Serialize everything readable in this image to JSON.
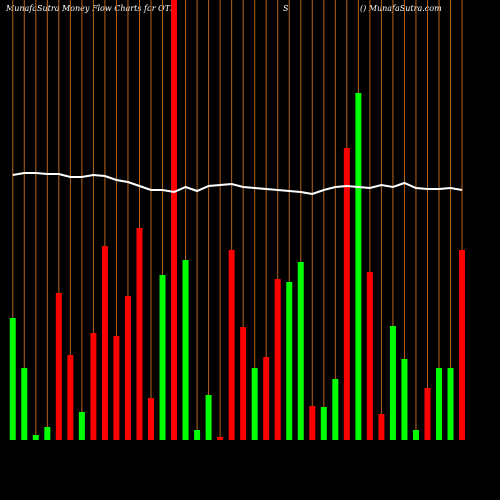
{
  "chart_data": {
    "type": "bar",
    "title": "MunafaSutra  Money Flow  Charts for OTI",
    "subtitle": "S",
    "source": "() MunafaSutra.com",
    "ylim": [
      0,
      440
    ],
    "grid_color": "#b8651b",
    "up_color": "#00ff00",
    "down_color": "#ff0000",
    "line_color": "#ffffff",
    "values": [
      122,
      72,
      5,
      13,
      147,
      85,
      28,
      107,
      194,
      104,
      144,
      212,
      42,
      165,
      440,
      180,
      10,
      45,
      3,
      190,
      113,
      72,
      83,
      161,
      158,
      178,
      34,
      33,
      61,
      292,
      347,
      168,
      26,
      114,
      81,
      10,
      52,
      72,
      72,
      190
    ],
    "directions": [
      "up",
      "up",
      "up",
      "up",
      "down",
      "down",
      "up",
      "down",
      "down",
      "down",
      "down",
      "down",
      "down",
      "up",
      "down",
      "up",
      "up",
      "up",
      "down",
      "down",
      "down",
      "up",
      "down",
      "down",
      "up",
      "up",
      "down",
      "up",
      "up",
      "down",
      "up",
      "down",
      "down",
      "up",
      "up",
      "up",
      "down",
      "up",
      "up",
      "down"
    ],
    "line": [
      265,
      267,
      267,
      266,
      266,
      263,
      263,
      265,
      264,
      260,
      258,
      254,
      250,
      250,
      248,
      253,
      249,
      254,
      255,
      256,
      253,
      252,
      251,
      250,
      249,
      248,
      246,
      250,
      253,
      254,
      253,
      252,
      255,
      253,
      257,
      252,
      251,
      251,
      252,
      250
    ]
  }
}
